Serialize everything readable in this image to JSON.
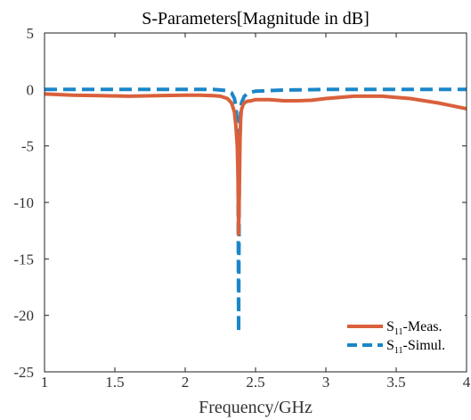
{
  "chart_data": {
    "type": "line",
    "title": "S-Parameters[Magnitude in dB]",
    "xlabel": "Frequency/GHz",
    "ylabel": "",
    "xlim": [
      1,
      4
    ],
    "ylim": [
      -25,
      5
    ],
    "xticks": [
      1,
      1.5,
      2,
      2.5,
      3,
      3.5,
      4
    ],
    "yticks": [
      5,
      0,
      -5,
      -10,
      -15,
      -20,
      -25
    ],
    "grid": false,
    "legend_position": "bottom-right",
    "series": [
      {
        "name_main": "S",
        "name_sub": "11",
        "name_rest": "-Meas.",
        "color": "#d9603b",
        "style": "solid",
        "x": [
          1.0,
          1.2,
          1.4,
          1.6,
          1.8,
          2.0,
          2.1,
          2.2,
          2.25,
          2.3,
          2.33,
          2.35,
          2.36,
          2.37,
          2.375,
          2.38,
          2.385,
          2.39,
          2.395,
          2.4,
          2.41,
          2.42,
          2.44,
          2.47,
          2.5,
          2.6,
          2.7,
          2.8,
          2.9,
          3.0,
          3.2,
          3.4,
          3.5,
          3.6,
          3.8,
          4.0
        ],
        "y": [
          -0.4,
          -0.5,
          -0.55,
          -0.6,
          -0.55,
          -0.5,
          -0.5,
          -0.55,
          -0.6,
          -0.8,
          -1.2,
          -2.0,
          -3.2,
          -5.0,
          -7.5,
          -12.8,
          -9.0,
          -4.5,
          -2.5,
          -1.8,
          -1.4,
          -1.2,
          -1.05,
          -1.0,
          -0.9,
          -0.9,
          -1.0,
          -1.0,
          -0.95,
          -0.8,
          -0.6,
          -0.6,
          -0.7,
          -0.8,
          -1.2,
          -1.7
        ]
      },
      {
        "name_main": "S",
        "name_sub": "11",
        "name_rest": "-Simul.",
        "color": "#1a86c8",
        "style": "dashed",
        "x": [
          1.0,
          1.5,
          2.0,
          2.2,
          2.3,
          2.33,
          2.35,
          2.36,
          2.37,
          2.375,
          2.38,
          2.385,
          2.39,
          2.395,
          2.4,
          2.42,
          2.45,
          2.5,
          2.7,
          3.0,
          3.5,
          4.0
        ],
        "y": [
          0.0,
          0.0,
          0.0,
          0.0,
          -0.1,
          -0.3,
          -0.8,
          -1.5,
          -3.0,
          -5.0,
          -21.5,
          -6.0,
          -3.0,
          -1.8,
          -1.2,
          -0.6,
          -0.3,
          -0.15,
          -0.05,
          0.0,
          0.0,
          0.0
        ]
      }
    ]
  }
}
